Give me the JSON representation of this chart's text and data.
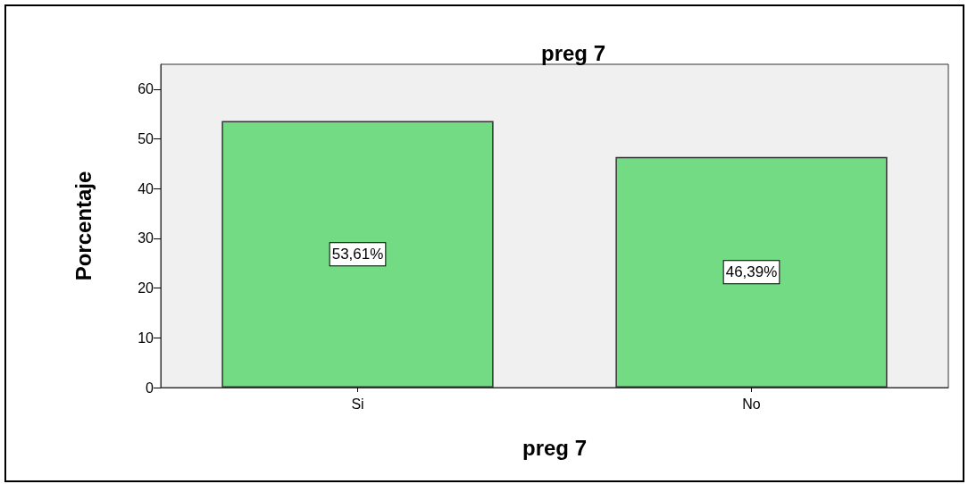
{
  "chart_data": {
    "type": "bar",
    "title": "preg 7",
    "xlabel": "preg 7",
    "ylabel": "Porcentaje",
    "categories": [
      "Si",
      "No"
    ],
    "values": [
      53.61,
      46.39
    ],
    "color": "#72db84",
    "value_labels": [
      "53,61%",
      "46,39%"
    ],
    "ylim": [
      0,
      65
    ],
    "yticks": [
      0,
      10,
      20,
      30,
      40,
      50,
      60
    ],
    "grid": false
  }
}
